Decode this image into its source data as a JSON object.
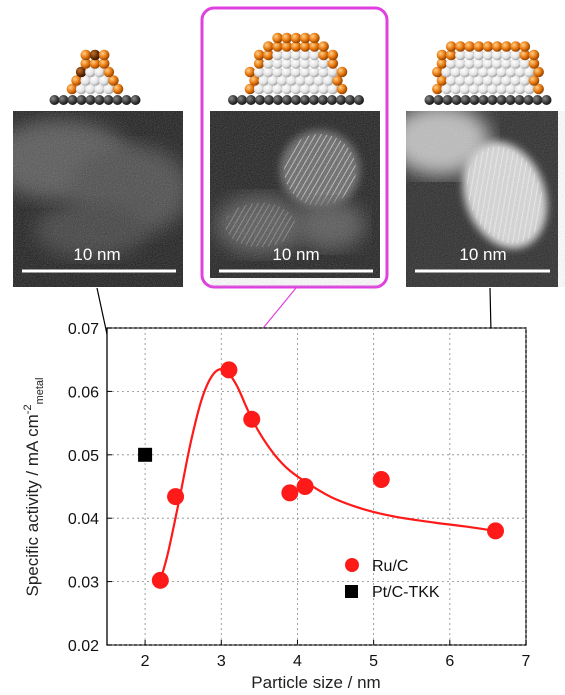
{
  "chart_data": {
    "type": "scatter",
    "xlabel": "Particle size / nm",
    "ylabel": "Specific activity / mA cm",
    "ylabel_sup": "-2",
    "ylabel_sub": "metal",
    "xlim": [
      1.5,
      7
    ],
    "ylim": [
      0.02,
      0.07
    ],
    "xticks": [
      "2",
      "3",
      "4",
      "5",
      "6",
      "7"
    ],
    "yticks": [
      "0.02",
      "0.03",
      "0.04",
      "0.05",
      "0.06",
      "0.07"
    ],
    "grid": true,
    "legend_position": "bottom-right",
    "series": [
      {
        "name": "Ru/C",
        "marker": "circle",
        "color": "#ff1a1a",
        "x": [
          2.2,
          2.4,
          3.1,
          3.4,
          3.9,
          4.1,
          5.1,
          6.6
        ],
        "y": [
          0.0302,
          0.0434,
          0.0634,
          0.0556,
          0.044,
          0.045,
          0.0461,
          0.038
        ]
      },
      {
        "name": "Pt/C-TKK",
        "marker": "square",
        "color": "#000000",
        "x": [
          2.0
        ],
        "y": [
          0.05
        ]
      }
    ],
    "trend_curve": {
      "color": "#ff1a1a",
      "x": [
        2.2,
        2.3,
        2.45,
        2.6,
        2.75,
        2.9,
        3.05,
        3.2,
        3.35,
        3.5,
        3.7,
        3.9,
        4.2,
        4.5,
        4.9,
        5.3,
        5.8,
        6.2,
        6.6
      ],
      "y": [
        0.0302,
        0.0345,
        0.043,
        0.052,
        0.059,
        0.0628,
        0.0634,
        0.061,
        0.057,
        0.0535,
        0.05,
        0.0475,
        0.045,
        0.043,
        0.0413,
        0.0402,
        0.0393,
        0.0387,
        0.038
      ]
    }
  },
  "micrographs": [
    {
      "scale_label": "10 nm",
      "highlighted": false,
      "linked_x": 2.2,
      "linked_y": 0.0302
    },
    {
      "scale_label": "10 nm",
      "highlighted": true,
      "linked_x": 3.1,
      "linked_y": 0.0634
    },
    {
      "scale_label": "10 nm",
      "highlighted": false,
      "linked_x": 6.6,
      "linked_y": 0.038
    }
  ],
  "colors": {
    "ru_atom": "#e8790f",
    "surface_atom": "#f0f0f0",
    "support": "#3a3a3a",
    "highlight": "#e040e0"
  }
}
